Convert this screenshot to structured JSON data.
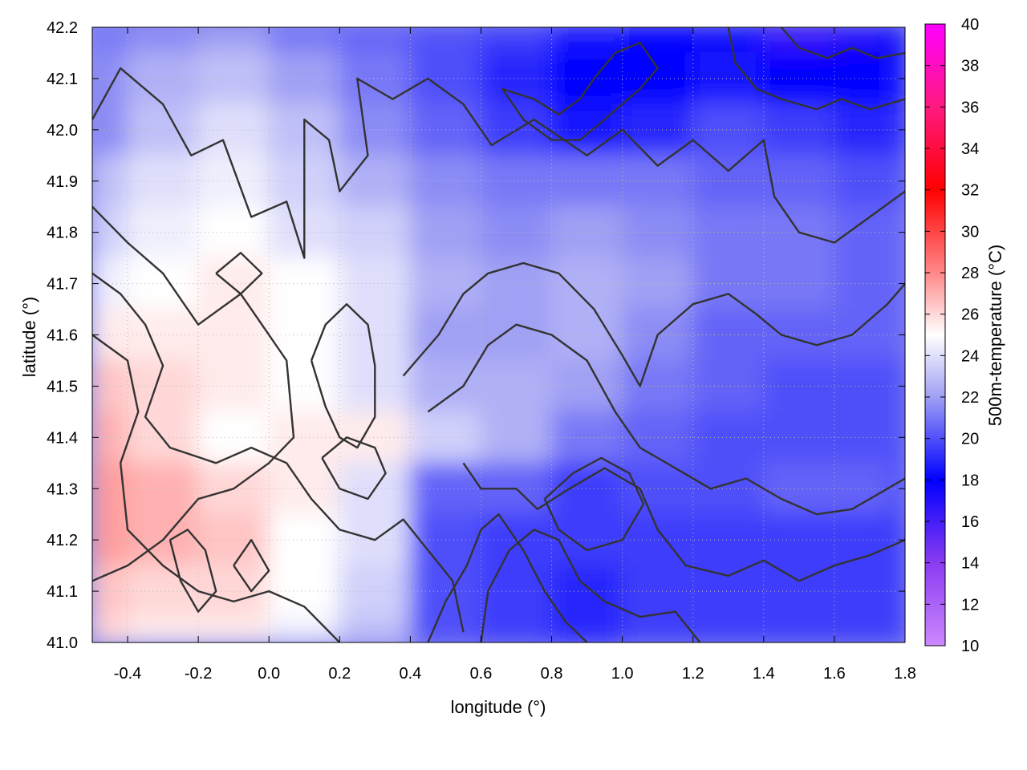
{
  "chart_data": {
    "type": "heatmap",
    "title": "",
    "xlabel": "longitude (°)",
    "ylabel": "latitude (°)",
    "colorbar_label": "500m-temperature (°C)",
    "xlim": [
      -0.5,
      1.8
    ],
    "ylim": [
      41.0,
      42.2
    ],
    "x_ticks": [
      -0.4,
      -0.2,
      0.0,
      0.2,
      0.4,
      0.6,
      0.8,
      1.0,
      1.2,
      1.4,
      1.6,
      1.8
    ],
    "x_tick_labels": [
      "-0.4",
      "-0.2",
      "0.0",
      "0.2",
      "0.4",
      "0.6",
      "0.8",
      "1.0",
      "1.2",
      "1.4",
      "1.6",
      "1.8"
    ],
    "y_ticks": [
      41.0,
      41.1,
      41.2,
      41.3,
      41.4,
      41.5,
      41.6,
      41.7,
      41.8,
      41.9,
      42.0,
      42.1,
      42.2
    ],
    "y_tick_labels": [
      "41.0",
      "41.1",
      "41.2",
      "41.3",
      "41.4",
      "41.5",
      "41.6",
      "41.7",
      "41.8",
      "41.9",
      "42.0",
      "42.1",
      "42.2"
    ],
    "colorbar_range": [
      10,
      40
    ],
    "colorbar_ticks": [
      10,
      12,
      14,
      16,
      18,
      20,
      22,
      24,
      26,
      28,
      30,
      32,
      34,
      36,
      38,
      40
    ],
    "colorbar_tick_labels": [
      "10",
      "12",
      "14",
      "16",
      "18",
      "20",
      "22",
      "24",
      "26",
      "28",
      "30",
      "32",
      "34",
      "36",
      "38",
      "40"
    ],
    "colormap": [
      [
        10,
        "#cc88ff"
      ],
      [
        14,
        "#8a3cf0"
      ],
      [
        18,
        "#0000ff"
      ],
      [
        22,
        "#a0a0f4"
      ],
      [
        25,
        "#ffffff"
      ],
      [
        28,
        "#ff8888"
      ],
      [
        32,
        "#ff0000"
      ],
      [
        36,
        "#ff1a80"
      ],
      [
        40,
        "#ff00ff"
      ]
    ],
    "grid": true,
    "field_grid": {
      "x": [
        -0.5,
        -0.3,
        -0.1,
        0.1,
        0.3,
        0.5,
        0.7,
        0.9,
        1.1,
        1.3,
        1.5,
        1.7,
        1.8
      ],
      "y": [
        42.2,
        42.1,
        42.0,
        41.9,
        41.8,
        41.7,
        41.6,
        41.5,
        41.4,
        41.3,
        41.2,
        41.1,
        41.0
      ],
      "values": [
        [
          21.0,
          21.5,
          22.0,
          21.0,
          20.5,
          20.0,
          19.5,
          18.5,
          18.0,
          17.5,
          16.5,
          17.0,
          17.5
        ],
        [
          21.5,
          22.5,
          23.0,
          22.0,
          21.0,
          20.0,
          19.0,
          18.0,
          18.0,
          18.5,
          18.0,
          18.0,
          18.5
        ],
        [
          21.5,
          23.0,
          24.0,
          23.0,
          21.5,
          20.5,
          19.5,
          18.5,
          19.0,
          20.0,
          19.5,
          19.0,
          19.0
        ],
        [
          23.0,
          24.0,
          24.5,
          23.5,
          22.5,
          21.5,
          21.0,
          21.0,
          21.0,
          20.5,
          20.5,
          20.0,
          20.0
        ],
        [
          23.5,
          24.5,
          25.0,
          24.0,
          23.5,
          22.0,
          21.5,
          22.0,
          21.5,
          21.0,
          21.0,
          20.5,
          20.5
        ],
        [
          24.5,
          25.0,
          25.5,
          25.0,
          24.0,
          22.5,
          22.0,
          22.5,
          22.0,
          21.0,
          21.0,
          20.5,
          20.5
        ],
        [
          25.5,
          25.5,
          25.5,
          25.0,
          24.0,
          22.0,
          22.0,
          22.5,
          21.5,
          20.5,
          20.5,
          20.5,
          20.5
        ],
        [
          26.5,
          26.0,
          25.5,
          25.0,
          24.0,
          22.5,
          22.5,
          22.0,
          21.0,
          20.5,
          20.0,
          20.0,
          20.0
        ],
        [
          27.0,
          26.0,
          25.0,
          25.5,
          25.5,
          23.5,
          22.5,
          21.0,
          20.5,
          20.0,
          20.0,
          20.0,
          20.0
        ],
        [
          27.5,
          27.0,
          26.0,
          25.5,
          24.0,
          20.5,
          20.5,
          19.5,
          20.0,
          20.0,
          20.5,
          20.5,
          20.0
        ],
        [
          27.5,
          27.0,
          26.5,
          25.0,
          24.0,
          20.0,
          19.5,
          19.5,
          19.5,
          19.5,
          19.5,
          19.5,
          19.5
        ],
        [
          26.5,
          26.0,
          26.0,
          25.0,
          23.5,
          20.0,
          19.5,
          19.0,
          19.5,
          19.5,
          19.5,
          19.5,
          19.5
        ],
        [
          26.0,
          25.5,
          25.5,
          24.5,
          23.0,
          20.0,
          19.5,
          19.0,
          19.5,
          19.5,
          19.5,
          19.5,
          19.5
        ]
      ]
    },
    "contours": [
      [
        [
          -0.5,
          42.02
        ],
        [
          -0.42,
          42.12
        ],
        [
          -0.3,
          42.05
        ],
        [
          -0.22,
          41.95
        ],
        [
          -0.13,
          41.98
        ],
        [
          -0.05,
          41.83
        ],
        [
          0.05,
          41.86
        ],
        [
          0.1,
          41.75
        ],
        [
          0.1,
          41.9
        ],
        [
          0.1,
          42.02
        ],
        [
          0.17,
          41.98
        ],
        [
          0.2,
          41.88
        ],
        [
          0.28,
          41.95
        ],
        [
          0.25,
          42.1
        ],
        [
          0.35,
          42.06
        ],
        [
          0.45,
          42.1
        ],
        [
          0.55,
          42.05
        ],
        [
          0.63,
          41.97
        ],
        [
          0.75,
          42.02
        ],
        [
          0.9,
          41.95
        ],
        [
          1.0,
          42.0
        ],
        [
          1.1,
          41.93
        ],
        [
          1.2,
          41.98
        ],
        [
          1.3,
          41.92
        ],
        [
          1.4,
          41.98
        ],
        [
          1.43,
          41.87
        ],
        [
          1.5,
          41.8
        ],
        [
          1.6,
          41.78
        ],
        [
          1.7,
          41.83
        ],
        [
          1.8,
          41.88
        ]
      ],
      [
        [
          -0.5,
          41.85
        ],
        [
          -0.4,
          41.78
        ],
        [
          -0.3,
          41.72
        ],
        [
          -0.2,
          41.62
        ],
        [
          -0.08,
          41.68
        ],
        [
          -0.02,
          41.62
        ],
        [
          0.05,
          41.55
        ],
        [
          0.07,
          41.4
        ],
        [
          0.0,
          41.35
        ],
        [
          -0.1,
          41.3
        ],
        [
          -0.2,
          41.28
        ],
        [
          -0.3,
          41.2
        ],
        [
          -0.4,
          41.15
        ],
        [
          -0.5,
          41.12
        ]
      ],
      [
        [
          -0.5,
          41.72
        ],
        [
          -0.42,
          41.68
        ],
        [
          -0.35,
          41.62
        ],
        [
          -0.3,
          41.54
        ],
        [
          -0.35,
          41.44
        ],
        [
          -0.28,
          41.38
        ],
        [
          -0.15,
          41.35
        ],
        [
          -0.05,
          41.38
        ],
        [
          0.05,
          41.35
        ],
        [
          0.12,
          41.28
        ],
        [
          0.2,
          41.22
        ],
        [
          0.3,
          41.2
        ],
        [
          0.38,
          41.24
        ],
        [
          0.45,
          41.18
        ],
        [
          0.52,
          41.12
        ],
        [
          0.55,
          41.02
        ]
      ],
      [
        [
          -0.5,
          41.6
        ],
        [
          -0.4,
          41.55
        ],
        [
          -0.37,
          41.45
        ],
        [
          -0.42,
          41.35
        ],
        [
          -0.4,
          41.22
        ],
        [
          -0.3,
          41.15
        ],
        [
          -0.2,
          41.1
        ],
        [
          -0.1,
          41.08
        ],
        [
          0.0,
          41.1
        ],
        [
          0.1,
          41.07
        ],
        [
          0.2,
          41.0
        ]
      ],
      [
        [
          0.38,
          41.52
        ],
        [
          0.48,
          41.6
        ],
        [
          0.55,
          41.68
        ],
        [
          0.62,
          41.72
        ],
        [
          0.72,
          41.74
        ],
        [
          0.82,
          41.72
        ],
        [
          0.92,
          41.65
        ],
        [
          1.0,
          41.56
        ],
        [
          1.05,
          41.5
        ],
        [
          1.1,
          41.6
        ],
        [
          1.2,
          41.66
        ],
        [
          1.3,
          41.68
        ],
        [
          1.38,
          41.64
        ],
        [
          1.45,
          41.6
        ],
        [
          1.55,
          41.58
        ],
        [
          1.65,
          41.6
        ],
        [
          1.75,
          41.66
        ],
        [
          1.8,
          41.7
        ]
      ],
      [
        [
          0.45,
          41.45
        ],
        [
          0.55,
          41.5
        ],
        [
          0.62,
          41.58
        ],
        [
          0.7,
          41.62
        ],
        [
          0.8,
          41.6
        ],
        [
          0.9,
          41.55
        ],
        [
          0.98,
          41.45
        ],
        [
          1.05,
          41.38
        ],
        [
          1.15,
          41.34
        ],
        [
          1.25,
          41.3
        ],
        [
          1.35,
          41.32
        ],
        [
          1.45,
          41.28
        ],
        [
          1.55,
          41.25
        ],
        [
          1.65,
          41.26
        ],
        [
          1.75,
          41.3
        ],
        [
          1.8,
          41.32
        ]
      ],
      [
        [
          0.55,
          41.35
        ],
        [
          0.6,
          41.3
        ],
        [
          0.7,
          41.3
        ],
        [
          0.76,
          41.26
        ],
        [
          0.85,
          41.3
        ],
        [
          0.95,
          41.34
        ],
        [
          1.05,
          41.3
        ],
        [
          1.1,
          41.22
        ],
        [
          1.18,
          41.15
        ],
        [
          1.3,
          41.13
        ],
        [
          1.4,
          41.16
        ],
        [
          1.5,
          41.12
        ],
        [
          1.6,
          41.15
        ],
        [
          1.7,
          41.17
        ],
        [
          1.8,
          41.2
        ]
      ],
      [
        [
          0.6,
          41.0
        ],
        [
          0.62,
          41.1
        ],
        [
          0.68,
          41.18
        ],
        [
          0.75,
          41.22
        ],
        [
          0.82,
          41.2
        ],
        [
          0.88,
          41.12
        ],
        [
          0.95,
          41.08
        ],
        [
          1.05,
          41.05
        ],
        [
          1.15,
          41.06
        ],
        [
          1.22,
          41.0
        ]
      ],
      [
        [
          0.45,
          41.0
        ],
        [
          0.5,
          41.08
        ],
        [
          0.56,
          41.15
        ],
        [
          0.6,
          41.22
        ],
        [
          0.65,
          41.25
        ],
        [
          0.72,
          41.18
        ],
        [
          0.78,
          41.1
        ],
        [
          0.84,
          41.04
        ],
        [
          0.9,
          41.0
        ]
      ],
      [
        [
          0.78,
          41.28
        ],
        [
          0.86,
          41.33
        ],
        [
          0.94,
          41.36
        ],
        [
          1.02,
          41.33
        ],
        [
          1.06,
          41.27
        ],
        [
          1.0,
          41.2
        ],
        [
          0.9,
          41.18
        ],
        [
          0.82,
          41.22
        ],
        [
          0.78,
          41.28
        ]
      ],
      [
        [
          0.66,
          42.08
        ],
        [
          0.75,
          42.06
        ],
        [
          0.82,
          42.03
        ],
        [
          0.88,
          42.06
        ],
        [
          0.92,
          42.1
        ],
        [
          0.98,
          42.15
        ],
        [
          1.05,
          42.17
        ],
        [
          1.1,
          42.12
        ],
        [
          1.05,
          42.08
        ],
        [
          0.95,
          42.02
        ],
        [
          0.88,
          41.98
        ],
        [
          0.8,
          41.98
        ],
        [
          0.72,
          42.02
        ],
        [
          0.66,
          42.08
        ]
      ],
      [
        [
          0.12,
          41.55
        ],
        [
          0.16,
          41.62
        ],
        [
          0.22,
          41.66
        ],
        [
          0.28,
          41.62
        ],
        [
          0.3,
          41.54
        ],
        [
          0.3,
          41.44
        ],
        [
          0.25,
          41.38
        ],
        [
          0.2,
          41.4
        ],
        [
          0.16,
          41.46
        ],
        [
          0.12,
          41.55
        ]
      ],
      [
        [
          0.15,
          41.36
        ],
        [
          0.2,
          41.3
        ],
        [
          0.28,
          41.28
        ],
        [
          0.33,
          41.33
        ],
        [
          0.3,
          41.38
        ],
        [
          0.22,
          41.4
        ],
        [
          0.15,
          41.36
        ]
      ],
      [
        [
          1.45,
          42.2
        ],
        [
          1.5,
          42.16
        ],
        [
          1.58,
          42.14
        ],
        [
          1.65,
          42.16
        ],
        [
          1.72,
          42.14
        ],
        [
          1.8,
          42.15
        ]
      ],
      [
        [
          1.3,
          42.2
        ],
        [
          1.32,
          42.13
        ],
        [
          1.38,
          42.08
        ],
        [
          1.45,
          42.06
        ],
        [
          1.55,
          42.04
        ],
        [
          1.62,
          42.06
        ],
        [
          1.7,
          42.04
        ],
        [
          1.8,
          42.06
        ]
      ],
      [
        [
          -0.28,
          41.2
        ],
        [
          -0.25,
          41.12
        ],
        [
          -0.2,
          41.06
        ],
        [
          -0.15,
          41.1
        ],
        [
          -0.18,
          41.18
        ],
        [
          -0.23,
          41.22
        ],
        [
          -0.28,
          41.2
        ]
      ],
      [
        [
          -0.1,
          41.15
        ],
        [
          -0.05,
          41.1
        ],
        [
          0.0,
          41.14
        ],
        [
          -0.05,
          41.2
        ],
        [
          -0.1,
          41.15
        ]
      ],
      [
        [
          -0.15,
          41.72
        ],
        [
          -0.08,
          41.68
        ],
        [
          -0.02,
          41.72
        ],
        [
          -0.08,
          41.76
        ],
        [
          -0.15,
          41.72
        ]
      ]
    ]
  }
}
